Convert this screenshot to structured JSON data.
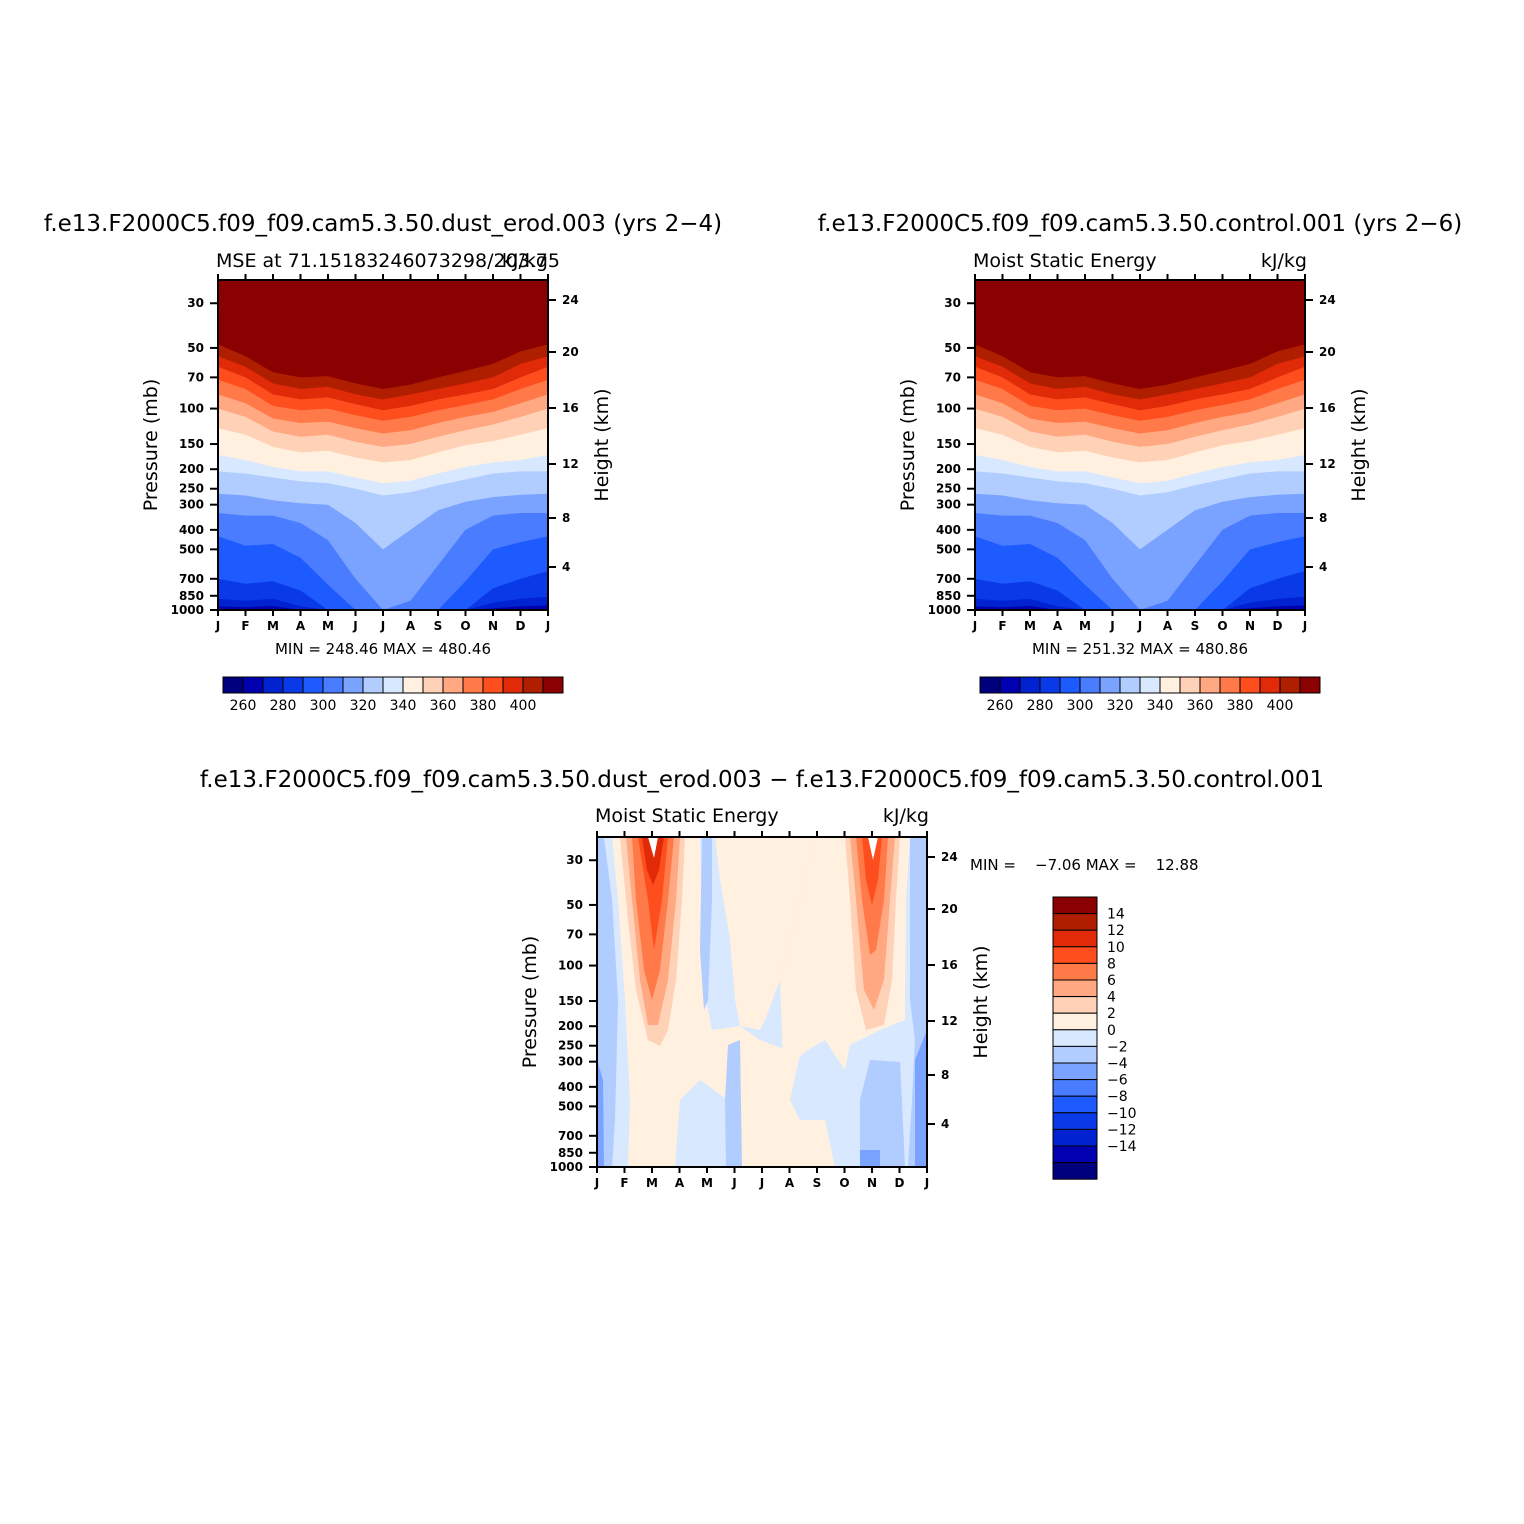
{
  "chart_data": [
    {
      "type": "heatmap",
      "title": "f.e13.F2000C5.f09_f09.cam5.3.50.dust_erod.003 (yrs 2−4)",
      "left_label": "MSE at 71.15183246073298/203.75",
      "right_label": "kJ/kg",
      "ylabel": "Pressure (mb)",
      "ylabel_right": "Height (km)",
      "x_ticks": [
        "J",
        "F",
        "M",
        "A",
        "M",
        "J",
        "J",
        "A",
        "S",
        "O",
        "N",
        "D",
        "J"
      ],
      "y_ticks": [
        "30",
        "50",
        "70",
        "100",
        "150",
        "200",
        "250",
        "300",
        "400",
        "500",
        "700",
        "850",
        "1000"
      ],
      "y_right_ticks": [
        "24",
        "20",
        "16",
        "12",
        "8",
        "4"
      ],
      "min_max": "MIN = 248.46 MAX = 480.46",
      "colorbar_labels": [
        "260",
        "280",
        "300",
        "320",
        "340",
        "360",
        "380",
        "400"
      ],
      "levels": [
        250,
        260,
        270,
        280,
        290,
        300,
        310,
        320,
        330,
        340,
        350,
        360,
        370,
        380,
        390,
        400
      ],
      "colors": [
        "#00007f",
        "#0000b0",
        "#0022d0",
        "#0a3ae8",
        "#1e5bff",
        "#4a7cff",
        "#7aa2ff",
        "#b1ccff",
        "#d7e8ff",
        "#fff0e0",
        "#ffd2b8",
        "#ffa882",
        "#ff7a48",
        "#ff4e1e",
        "#e02a08",
        "#b01e00",
        "#8b0000"
      ],
      "profile": [
        {
          "level": 30,
          "value": 420
        },
        {
          "level": 50,
          "value": 400
        },
        {
          "level": 70,
          "value": 380
        },
        {
          "level": 100,
          "value": 365
        },
        {
          "level": 150,
          "value": 345
        },
        {
          "level": 200,
          "value": 330
        },
        {
          "level": 250,
          "value": 322
        },
        {
          "level": 300,
          "value": 316
        },
        {
          "level": 400,
          "value": 308
        },
        {
          "level": 500,
          "value": 300
        },
        {
          "level": 700,
          "value": 290
        },
        {
          "level": 850,
          "value": 282
        },
        {
          "level": 1000,
          "value": 272
        }
      ]
    },
    {
      "type": "heatmap",
      "title": "f.e13.F2000C5.f09_f09.cam5.3.50.control.001 (yrs 2−6)",
      "left_label": "Moist Static Energy",
      "right_label": "kJ/kg",
      "ylabel": "Pressure (mb)",
      "ylabel_right": "Height (km)",
      "x_ticks": [
        "J",
        "F",
        "M",
        "A",
        "M",
        "J",
        "J",
        "A",
        "S",
        "O",
        "N",
        "D",
        "J"
      ],
      "y_ticks": [
        "30",
        "50",
        "70",
        "100",
        "150",
        "200",
        "250",
        "300",
        "400",
        "500",
        "700",
        "850",
        "1000"
      ],
      "y_right_ticks": [
        "24",
        "20",
        "16",
        "12",
        "8",
        "4"
      ],
      "min_max": "MIN = 251.32 MAX = 480.86",
      "colorbar_labels": [
        "260",
        "280",
        "300",
        "320",
        "340",
        "360",
        "380",
        "400"
      ],
      "levels": [
        250,
        260,
        270,
        280,
        290,
        300,
        310,
        320,
        330,
        340,
        350,
        360,
        370,
        380,
        390,
        400
      ],
      "colors": [
        "#00007f",
        "#0000b0",
        "#0022d0",
        "#0a3ae8",
        "#1e5bff",
        "#4a7cff",
        "#7aa2ff",
        "#b1ccff",
        "#d7e8ff",
        "#fff0e0",
        "#ffd2b8",
        "#ffa882",
        "#ff7a48",
        "#ff4e1e",
        "#e02a08",
        "#b01e00",
        "#8b0000"
      ],
      "profile": [
        {
          "level": 30,
          "value": 420
        },
        {
          "level": 50,
          "value": 400
        },
        {
          "level": 70,
          "value": 380
        },
        {
          "level": 100,
          "value": 365
        },
        {
          "level": 150,
          "value": 345
        },
        {
          "level": 200,
          "value": 330
        },
        {
          "level": 250,
          "value": 322
        },
        {
          "level": 300,
          "value": 316
        },
        {
          "level": 400,
          "value": 308
        },
        {
          "level": 500,
          "value": 300
        },
        {
          "level": 700,
          "value": 290
        },
        {
          "level": 850,
          "value": 282
        },
        {
          "level": 1000,
          "value": 272
        }
      ]
    },
    {
      "type": "heatmap",
      "title": "f.e13.F2000C5.f09_f09.cam5.3.50.dust_erod.003 − f.e13.F2000C5.f09_f09.cam5.3.50.control.001",
      "left_label": "Moist Static Energy",
      "right_label": "kJ/kg",
      "ylabel": "Pressure (mb)",
      "ylabel_right": "Height (km)",
      "x_ticks": [
        "J",
        "F",
        "M",
        "A",
        "M",
        "J",
        "J",
        "A",
        "S",
        "O",
        "N",
        "D",
        "J"
      ],
      "y_ticks": [
        "30",
        "50",
        "70",
        "100",
        "150",
        "200",
        "250",
        "300",
        "400",
        "500",
        "700",
        "850",
        "1000"
      ],
      "y_right_ticks": [
        "24",
        "20",
        "16",
        "12",
        "8",
        "4"
      ],
      "min_max": "MIN =    −7.06 MAX =    12.88",
      "colorbar_labels": [
        "14",
        "12",
        "10",
        "8",
        "6",
        "4",
        "2",
        "0",
        "−2",
        "−4",
        "−6",
        "−8",
        "−10",
        "−12",
        "−14"
      ],
      "colors": [
        "#00007f",
        "#0000b0",
        "#0022d0",
        "#0a3ae8",
        "#1e5bff",
        "#4a7cff",
        "#7aa2ff",
        "#b1ccff",
        "#d7e8ff",
        "#fff0e0",
        "#ffd2b8",
        "#ffa882",
        "#ff7a48",
        "#ff4e1e",
        "#e02a08",
        "#b01e00",
        "#8b0000"
      ]
    }
  ]
}
